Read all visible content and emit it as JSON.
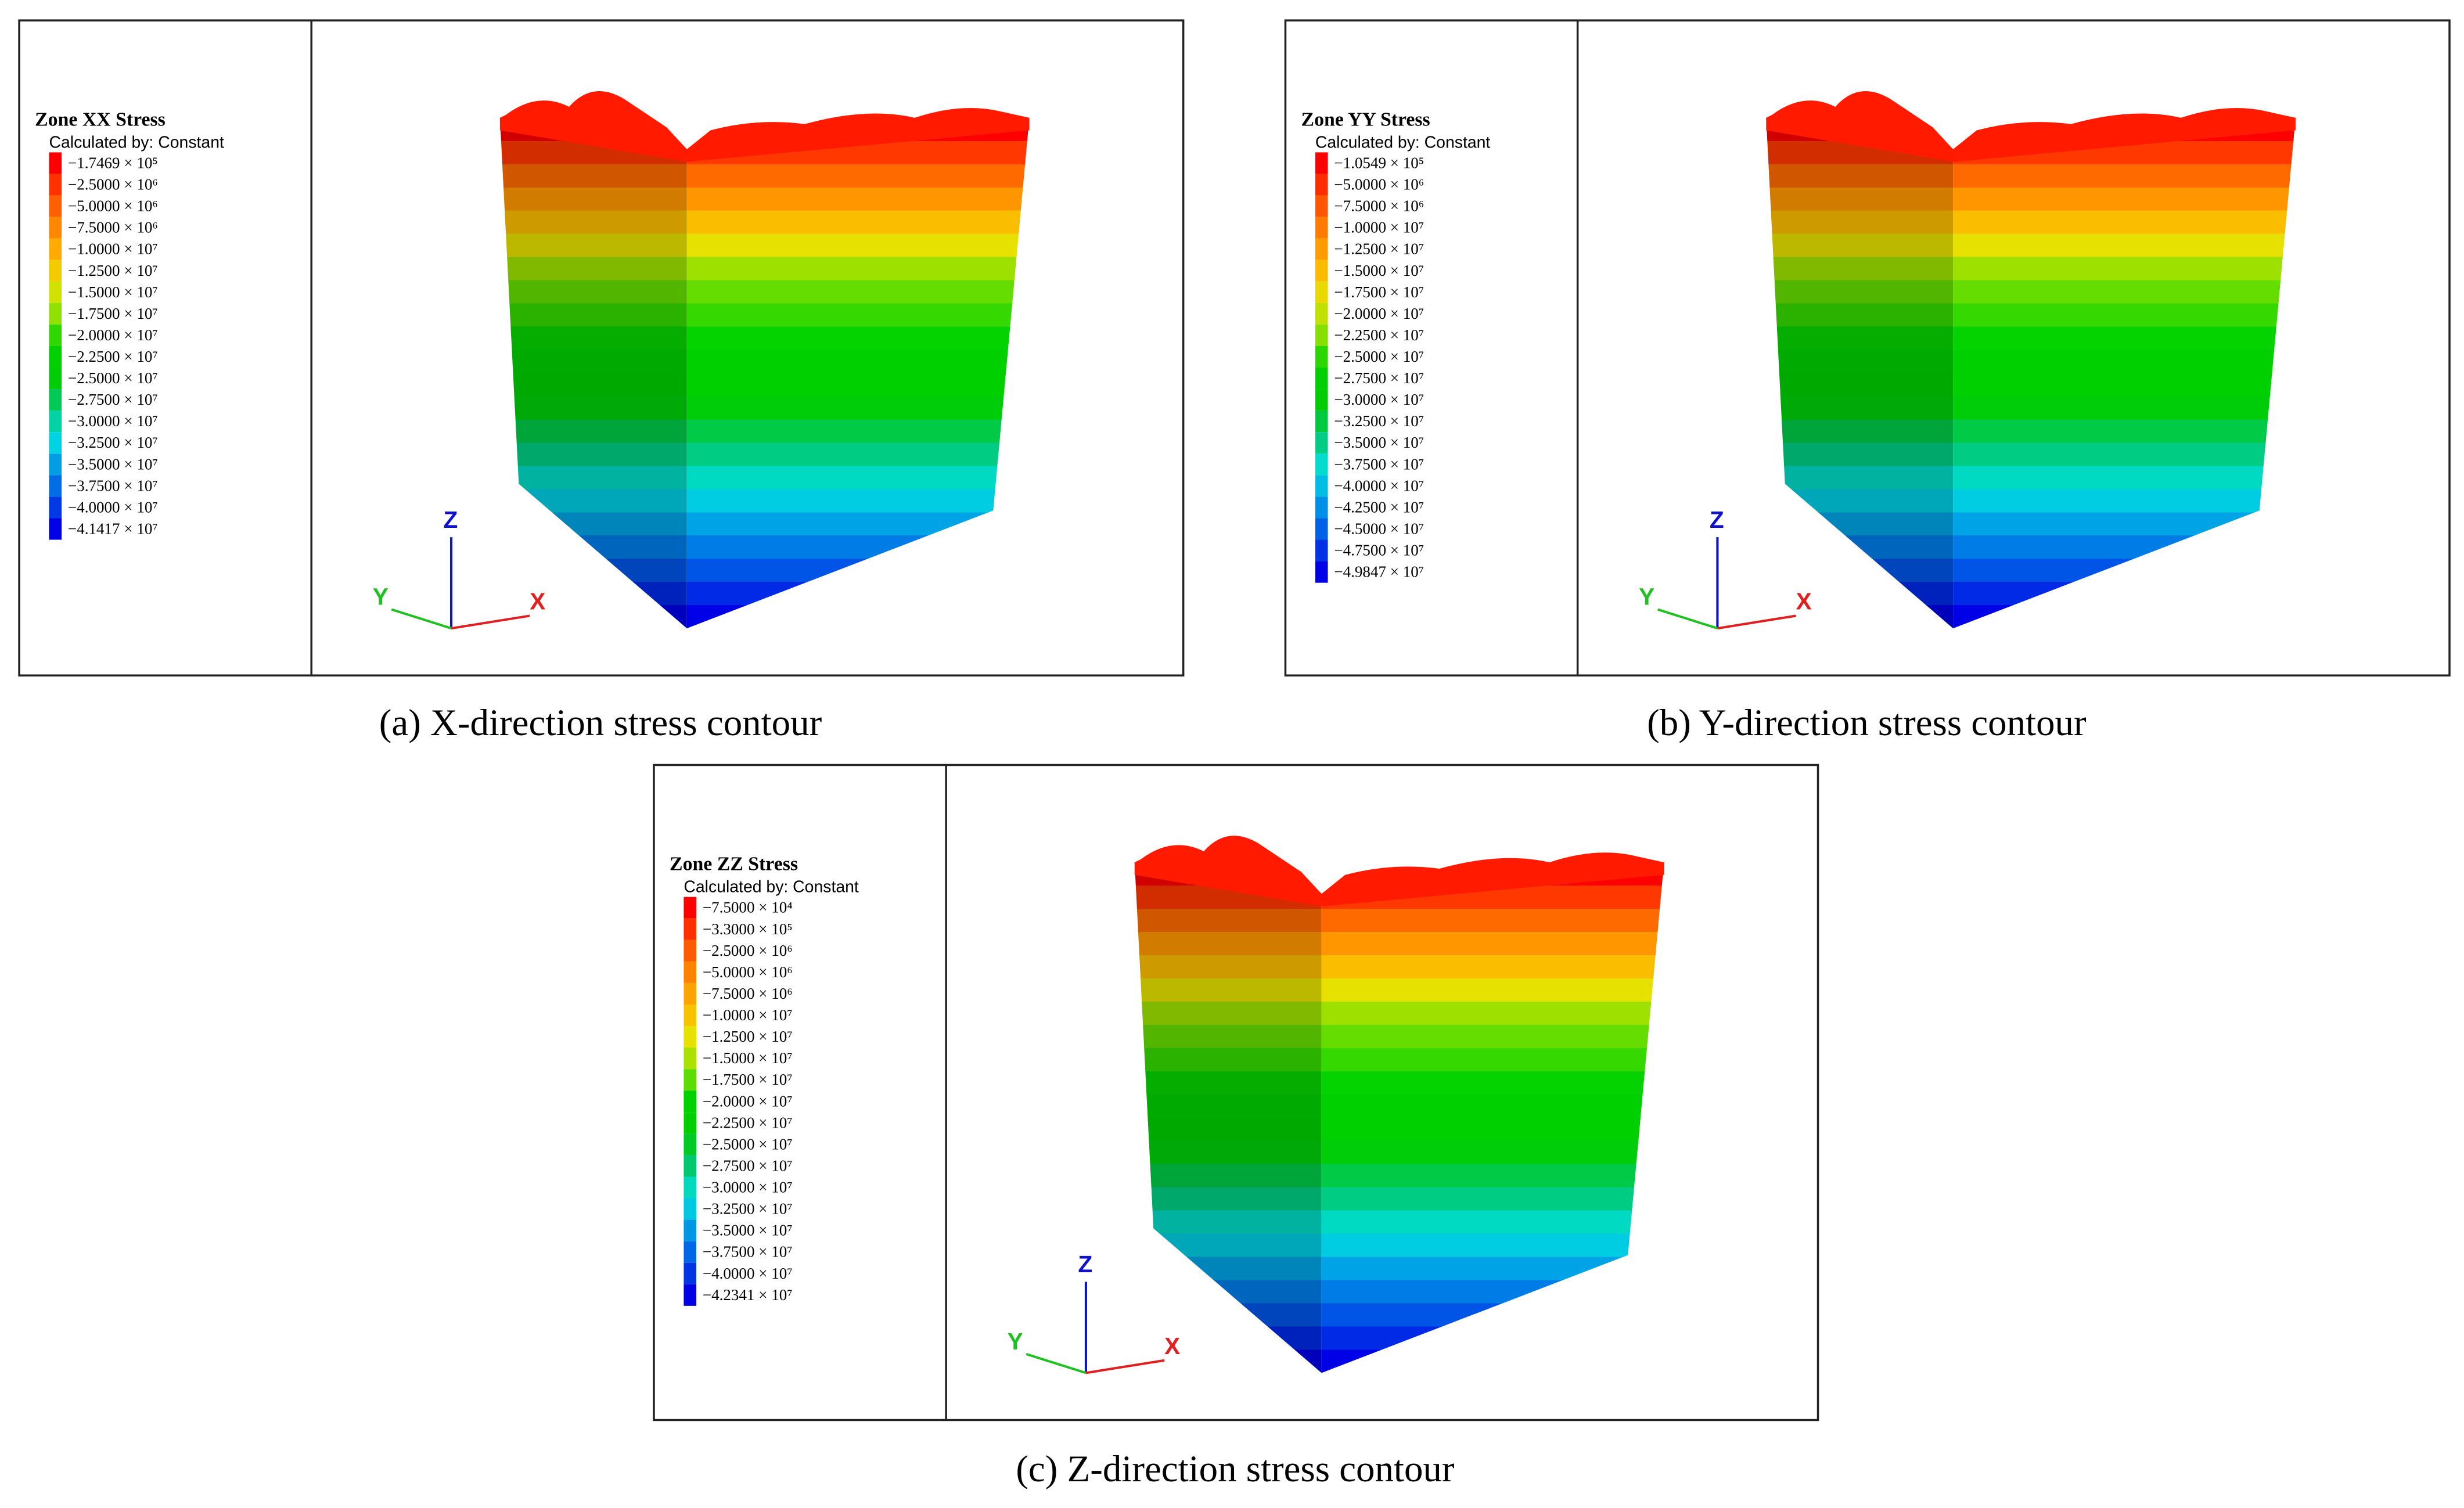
{
  "panels": [
    {
      "legend_title": "Zone XX Stress",
      "legend_subtitle": "Calculated by: Constant",
      "legend_entries": [
        "−1.7469 × 10⁵",
        "−2.5000 × 10⁶",
        "−5.0000 × 10⁶",
        "−7.5000 × 10⁶",
        "−1.0000 × 10⁷",
        "−1.2500 × 10⁷",
        "−1.5000 × 10⁷",
        "−1.7500 × 10⁷",
        "−2.0000 × 10⁷",
        "−2.2500 × 10⁷",
        "−2.5000 × 10⁷",
        "−2.7500 × 10⁷",
        "−3.0000 × 10⁷",
        "−3.2500 × 10⁷",
        "−3.5000 × 10⁷",
        "−3.7500 × 10⁷",
        "−4.0000 × 10⁷",
        "−4.1417 × 10⁷"
      ],
      "axes": {
        "z": "Z",
        "y": "Y",
        "x": "X"
      },
      "caption": "(a) X-direction stress contour"
    },
    {
      "legend_title": "Zone YY Stress",
      "legend_subtitle": "Calculated by: Constant",
      "legend_entries": [
        "−1.0549 × 10⁵",
        "−5.0000 × 10⁶",
        "−7.5000 × 10⁶",
        "−1.0000 × 10⁷",
        "−1.2500 × 10⁷",
        "−1.5000 × 10⁷",
        "−1.7500 × 10⁷",
        "−2.0000 × 10⁷",
        "−2.2500 × 10⁷",
        "−2.5000 × 10⁷",
        "−2.7500 × 10⁷",
        "−3.0000 × 10⁷",
        "−3.2500 × 10⁷",
        "−3.5000 × 10⁷",
        "−3.7500 × 10⁷",
        "−4.0000 × 10⁷",
        "−4.2500 × 10⁷",
        "−4.5000 × 10⁷",
        "−4.7500 × 10⁷",
        "−4.9847 × 10⁷"
      ],
      "axes": {
        "z": "Z",
        "y": "Y",
        "x": "X"
      },
      "caption": "(b) Y-direction stress contour"
    },
    {
      "legend_title": "Zone ZZ Stress",
      "legend_subtitle": "Calculated by: Constant",
      "legend_entries": [
        "−7.5000 × 10⁴",
        "−3.3000 × 10⁵",
        "−2.5000 × 10⁶",
        "−5.0000 × 10⁶",
        "−7.5000 × 10⁶",
        "−1.0000 × 10⁷",
        "−1.2500 × 10⁷",
        "−1.5000 × 10⁷",
        "−1.7500 × 10⁷",
        "−2.0000 × 10⁷",
        "−2.2500 × 10⁷",
        "−2.5000 × 10⁷",
        "−2.7500 × 10⁷",
        "−3.0000 × 10⁷",
        "−3.2500 × 10⁷",
        "−3.5000 × 10⁷",
        "−3.7500 × 10⁷",
        "−4.0000 × 10⁷",
        "−4.2341 × 10⁷"
      ],
      "axes": {
        "z": "Z",
        "y": "Y",
        "x": "X"
      },
      "caption": "(c) Z-direction stress contour"
    }
  ]
}
